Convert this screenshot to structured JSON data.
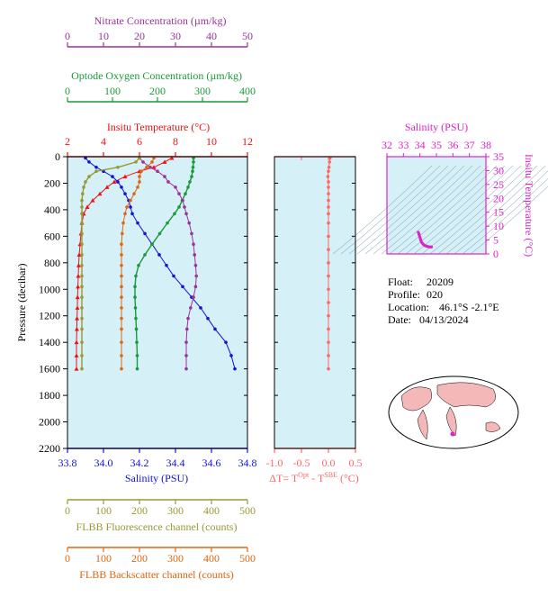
{
  "colors": {
    "nitrate": "#993399",
    "oxygen": "#1a9a3a",
    "temperature": "#ee1111",
    "salinity": "#1111dd",
    "fluorescence": "#999933",
    "backscatter": "#dd6611",
    "dt": "#ff6666",
    "ts": "#dd22cc",
    "panel_bg": "#d6f0f8"
  },
  "labels": {
    "pressure_axis": "Pressure (decibar)",
    "dt_axis": "ΔT= T",
    "dt_sup1": "Opt",
    "dt_mid": " - T",
    "dt_sup2": "SBE",
    "dt_unit": " (°C)",
    "map_title": "",
    "ts_x_axis": "Salinity (PSU)",
    "ts_y_axis": "Insitu Temperature (°C)"
  },
  "info": {
    "float_label": "Float:",
    "float_value": "20209",
    "profile_label": "Profile:",
    "profile_value": "020",
    "location_label": "Location:",
    "location_value": "46.1°S  -2.1°E",
    "date_label": "Date:",
    "date_value": "04/13/2024"
  },
  "chart_data": [
    {
      "type": "line",
      "title": "",
      "ylabel": "Pressure (decibar)",
      "ylim": [
        2200,
        0
      ],
      "yticks": [
        "0",
        "200",
        "400",
        "600",
        "800",
        "1000",
        "1200",
        "1400",
        "1600",
        "1800",
        "2000",
        "2200"
      ],
      "axes": {
        "nitrate": {
          "label": "Nitrate Concentration (µm/kg)",
          "lim": [
            0,
            50
          ],
          "ticks": [
            "0",
            "10",
            "20",
            "30",
            "40",
            "50"
          ]
        },
        "oxygen": {
          "label": "Optode Oxygen Concentration (µm/kg)",
          "lim": [
            0,
            400
          ],
          "ticks": [
            "0",
            "100",
            "200",
            "300",
            "400"
          ]
        },
        "temperature": {
          "label": "Insitu Temperature (°C)",
          "lim": [
            2,
            12
          ],
          "ticks": [
            "2",
            "4",
            "6",
            "8",
            "10",
            "12"
          ]
        },
        "salinity": {
          "label": "Salinity (PSU)",
          "lim": [
            33.8,
            34.8
          ],
          "ticks": [
            "33.8",
            "34.0",
            "34.2",
            "34.4",
            "34.6",
            "34.8"
          ]
        },
        "fluorescence": {
          "label": "FLBB Fluorescence channel (counts)",
          "lim": [
            0,
            500
          ],
          "ticks": [
            "0",
            "100",
            "200",
            "300",
            "400",
            "500"
          ]
        },
        "backscatter": {
          "label": "FLBB Backscatter channel (counts)",
          "lim": [
            0,
            500
          ],
          "ticks": [
            "0",
            "100",
            "200",
            "300",
            "400",
            "500"
          ]
        }
      },
      "series": [
        {
          "name": "Insitu Temperature",
          "axis": "temperature",
          "x": [
            7.8,
            7.4,
            6.8,
            6.0,
            5.2,
            4.6,
            4.2,
            3.8,
            3.4,
            3.1,
            2.9,
            2.8,
            2.75,
            2.7,
            2.65,
            2.62,
            2.6,
            2.58,
            2.56,
            2.55,
            2.53,
            2.52,
            2.5,
            2.5,
            2.5
          ],
          "y": [
            10,
            40,
            80,
            110,
            150,
            190,
            230,
            280,
            330,
            380,
            430,
            500,
            580,
            660,
            740,
            820,
            900,
            980,
            1060,
            1140,
            1220,
            1300,
            1400,
            1500,
            1600
          ]
        },
        {
          "name": "Salinity",
          "axis": "salinity",
          "x": [
            33.9,
            33.92,
            33.96,
            34.0,
            34.05,
            34.08,
            34.1,
            34.12,
            34.14,
            34.15,
            34.16,
            34.19,
            34.23,
            34.27,
            34.31,
            34.35,
            34.39,
            34.44,
            34.49,
            34.54,
            34.58,
            34.62,
            34.68,
            34.71,
            34.73
          ],
          "y": [
            10,
            40,
            80,
            110,
            150,
            190,
            230,
            280,
            330,
            380,
            430,
            500,
            580,
            660,
            740,
            820,
            900,
            980,
            1060,
            1140,
            1220,
            1300,
            1400,
            1500,
            1600
          ]
        },
        {
          "name": "Optode Oxygen",
          "axis": "oxygen",
          "x": [
            280,
            280,
            279,
            278,
            276,
            272,
            268,
            262,
            255,
            248,
            238,
            222,
            205,
            188,
            172,
            158,
            152,
            150,
            150,
            151,
            152,
            153,
            154,
            155,
            155
          ],
          "y": [
            10,
            40,
            80,
            110,
            150,
            190,
            230,
            280,
            330,
            380,
            430,
            500,
            580,
            660,
            740,
            820,
            900,
            980,
            1060,
            1140,
            1220,
            1300,
            1400,
            1500,
            1600
          ]
        },
        {
          "name": "Nitrate",
          "axis": "nitrate",
          "x": [
            20,
            21,
            23,
            25,
            27,
            28,
            30,
            31,
            32,
            32.5,
            33,
            33.8,
            34.5,
            35,
            35.3,
            35.6,
            35.8,
            35.6,
            35,
            34.2,
            33.5,
            33.2,
            33,
            33,
            33
          ],
          "y": [
            10,
            40,
            80,
            110,
            150,
            190,
            230,
            280,
            330,
            380,
            430,
            500,
            580,
            660,
            740,
            820,
            900,
            980,
            1060,
            1140,
            1220,
            1300,
            1400,
            1500,
            1600
          ]
        },
        {
          "name": "FLBB Fluorescence",
          "axis": "fluorescence",
          "x": [
            200,
            190,
            140,
            80,
            60,
            50,
            45,
            42,
            40,
            40,
            40,
            40,
            40,
            40,
            40,
            40,
            40,
            40,
            40,
            40,
            40,
            40,
            40,
            40,
            40
          ],
          "y": [
            10,
            40,
            80,
            110,
            150,
            190,
            230,
            280,
            330,
            380,
            430,
            500,
            580,
            660,
            740,
            820,
            900,
            980,
            1060,
            1140,
            1220,
            1300,
            1400,
            1500,
            1600
          ]
        },
        {
          "name": "FLBB Backscatter",
          "axis": "backscatter",
          "x": [
            240,
            235,
            220,
            205,
            200,
            200,
            195,
            185,
            175,
            165,
            160,
            155,
            152,
            150,
            150,
            150,
            150,
            150,
            150,
            150,
            150,
            150,
            150,
            150,
            150
          ],
          "y": [
            10,
            40,
            80,
            110,
            150,
            190,
            230,
            280,
            330,
            380,
            430,
            500,
            580,
            660,
            740,
            820,
            900,
            980,
            1060,
            1140,
            1220,
            1300,
            1400,
            1500,
            1600
          ]
        }
      ]
    },
    {
      "type": "line",
      "xlabel": "ΔT= TOpt - TSBE (°C)",
      "xlim": [
        -1.0,
        0.5
      ],
      "xticks": [
        "-1.0",
        "-0.5",
        "0.0",
        "0.5"
      ],
      "ylim": [
        2200,
        0
      ],
      "series": [
        {
          "name": "ΔT",
          "x": [
            0.03,
            0.02,
            0.01,
            0.0,
            -0.01,
            0.0,
            0.0,
            0.0,
            0.0,
            0.0,
            0.0,
            0.0,
            0.0,
            0.0,
            0.0,
            0.0,
            0.0,
            0.0,
            0.0,
            0.0,
            0.0,
            0.0,
            0.0
          ],
          "y": [
            10,
            40,
            80,
            110,
            150,
            190,
            230,
            280,
            330,
            380,
            430,
            500,
            600,
            700,
            800,
            900,
            1000,
            1100,
            1200,
            1300,
            1400,
            1500,
            1600
          ]
        }
      ]
    },
    {
      "type": "scatter",
      "xlabel": "Salinity (PSU)",
      "ylabel": "Insitu Temperature (°C)",
      "xlim": [
        32,
        38
      ],
      "ylim": [
        0,
        35
      ],
      "xticks": [
        "32",
        "33",
        "34",
        "35",
        "36",
        "37",
        "38"
      ],
      "yticks": [
        "0",
        "5",
        "10",
        "15",
        "20",
        "25",
        "30",
        "35"
      ],
      "series": [
        {
          "name": "T-S",
          "x": [
            33.9,
            33.95,
            34.0,
            34.05,
            34.1,
            34.2,
            34.3,
            34.4,
            34.5,
            34.6,
            34.7
          ],
          "y": [
            7.8,
            7.0,
            6.0,
            5.0,
            4.2,
            3.5,
            3.0,
            2.8,
            2.6,
            2.5,
            2.5
          ]
        }
      ]
    }
  ]
}
